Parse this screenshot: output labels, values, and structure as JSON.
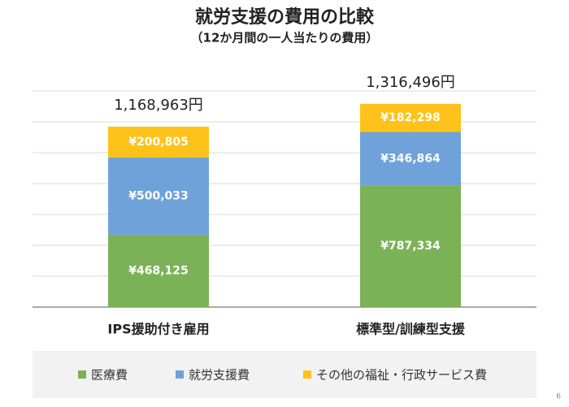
{
  "chart_data": {
    "type": "stacked_bar",
    "title": "就労支援の費用の比較",
    "subtitle": "（12か月間の一人当たりの費用）",
    "categories": [
      "IPS援助付き雇用",
      "標準型/訓練型支援"
    ],
    "series": [
      {
        "name": "医療費",
        "color": "#7cb257",
        "values": [
          468125,
          787334
        ],
        "value_labels": [
          "¥468,125",
          "¥787,334"
        ]
      },
      {
        "name": "就労支援費",
        "color": "#6fa2d9",
        "values": [
          500033,
          346864
        ],
        "value_labels": [
          "¥500,033",
          "¥346,864"
        ]
      },
      {
        "name": "その他の福祉・行政サービス費",
        "color": "#ffc21a",
        "values": [
          200805,
          182298
        ],
        "value_labels": [
          "¥200,805",
          "¥182,298"
        ]
      }
    ],
    "totals": [
      1168963,
      1316496
    ],
    "total_labels": [
      "1,168,963円",
      "1,316,496円"
    ],
    "ylim": [
      0,
      1400000
    ],
    "yticks": [
      0,
      200000,
      400000,
      600000,
      800000,
      1000000,
      1200000,
      1400000
    ],
    "grid": true,
    "page_number": "6"
  }
}
